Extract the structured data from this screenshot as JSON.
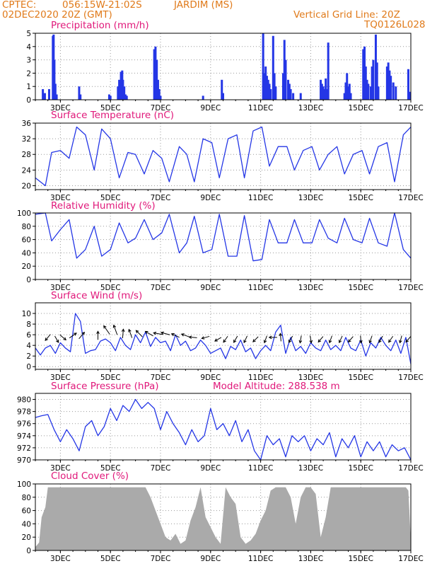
{
  "header": {
    "source": "CPTEC:",
    "coords": "056:15W-21:02S",
    "location": "JARDIM (MS)",
    "run": "02DEC2020 20Z (GMT)",
    "grid_note": "Vertical Grid Line: 20Z",
    "model_code": "TQ0126L028"
  },
  "x_axis": {
    "ticks": [
      {
        "day": 3,
        "label": "3DEC"
      },
      {
        "day": 5,
        "label": "5DEC"
      },
      {
        "day": 7,
        "label": "7DEC"
      },
      {
        "day": 9,
        "label": "9DEC"
      },
      {
        "day": 11,
        "label": "11DEC"
      },
      {
        "day": 13,
        "label": "13DEC"
      },
      {
        "day": 15,
        "label": "15DEC"
      },
      {
        "day": 17,
        "label": "17DEC"
      }
    ]
  },
  "model_altitude": "Model Altitude: 288.538 m",
  "colors": {
    "header": "#e07a1a",
    "panel_title": "#e0187a",
    "series": "#2436e6",
    "cloud": "#aaaaaa",
    "grid": "#999999"
  },
  "chart_data": [
    {
      "type": "bar",
      "title": "Precipitation (mm/h)",
      "ylim": [
        0,
        5
      ],
      "yticks": [
        0,
        1,
        2,
        3,
        4,
        5
      ],
      "x_unit": "day of December 2020",
      "x": [
        2.3,
        2.38,
        2.55,
        2.7,
        2.73,
        2.76,
        2.8,
        2.85,
        3.75,
        3.8,
        4.95,
        5.0,
        5.3,
        5.35,
        5.42,
        5.47,
        5.5,
        5.55,
        5.6,
        5.65,
        6.75,
        6.8,
        6.85,
        6.9,
        6.95,
        7.0,
        8.7,
        9.45,
        9.5,
        11.1,
        11.15,
        11.2,
        11.25,
        11.3,
        11.35,
        11.4,
        11.5,
        11.55,
        11.6,
        11.9,
        11.95,
        12.0,
        12.1,
        12.15,
        12.2,
        12.3,
        12.6,
        13.4,
        13.45,
        13.5,
        13.55,
        13.6,
        13.65,
        13.7,
        14.35,
        14.4,
        14.45,
        14.5,
        14.55,
        14.6,
        15.1,
        15.15,
        15.2,
        15.25,
        15.3,
        15.4,
        15.45,
        15.5,
        15.6,
        15.65,
        15.7,
        16.05,
        16.1,
        16.15,
        16.2,
        16.3,
        16.4,
        16.9,
        16.95
      ],
      "values": [
        0.8,
        0.5,
        0.8,
        4.8,
        4.9,
        3.0,
        1.2,
        0.4,
        1.0,
        0.4,
        0.4,
        0.3,
        1.0,
        1.5,
        2.1,
        2.2,
        1.5,
        1.0,
        0.4,
        0.3,
        3.8,
        4.0,
        3.0,
        1.5,
        0.8,
        0.3,
        0.3,
        1.5,
        0.5,
        5.0,
        2.0,
        2.5,
        1.8,
        1.5,
        1.2,
        0.8,
        4.8,
        2.0,
        1.0,
        2.0,
        4.5,
        3.0,
        1.5,
        1.2,
        0.8,
        0.5,
        0.5,
        1.5,
        1.2,
        1.0,
        0.8,
        1.6,
        0.8,
        4.3,
        0.5,
        1.3,
        2.0,
        1.0,
        1.2,
        0.5,
        3.8,
        4.0,
        2.5,
        1.5,
        1.2,
        1.0,
        2.5,
        3.0,
        4.9,
        2.8,
        1.0,
        2.5,
        2.8,
        2.2,
        1.8,
        1.3,
        1.0,
        2.3,
        0.6
      ]
    },
    {
      "type": "line",
      "title": "Surface Temperature (nC)",
      "ylim": [
        19,
        36
      ],
      "yticks": [
        20,
        24,
        28,
        32,
        36
      ],
      "x": [
        2.0,
        2.4,
        2.65,
        3.0,
        3.35,
        3.65,
        4.0,
        4.35,
        4.65,
        5.0,
        5.35,
        5.7,
        6.0,
        6.35,
        6.7,
        7.05,
        7.35,
        7.75,
        8.05,
        8.35,
        8.7,
        9.05,
        9.35,
        9.7,
        10.05,
        10.35,
        10.7,
        11.05,
        11.35,
        11.7,
        12.05,
        12.35,
        12.7,
        13.05,
        13.35,
        13.7,
        14.05,
        14.35,
        14.7,
        15.05,
        15.35,
        15.7,
        16.05,
        16.35,
        16.7,
        17.0
      ],
      "values": [
        22,
        20,
        28.5,
        29,
        27,
        35,
        33,
        24,
        34.5,
        32,
        22,
        28.5,
        28,
        23,
        29,
        27,
        21,
        30,
        28,
        21,
        32,
        31,
        22,
        32,
        33,
        22,
        34,
        35,
        25,
        30,
        30,
        24,
        29,
        30,
        24,
        28,
        30,
        23,
        28,
        29,
        23,
        30,
        31,
        21,
        33,
        35
      ]
    },
    {
      "type": "line",
      "title": "Relative Humidity (%)",
      "ylim": [
        0,
        100
      ],
      "yticks": [
        0,
        20,
        40,
        60,
        80,
        100
      ],
      "x": [
        2.0,
        2.4,
        2.65,
        3.0,
        3.35,
        3.65,
        4.0,
        4.35,
        4.65,
        5.0,
        5.35,
        5.7,
        6.0,
        6.35,
        6.7,
        7.05,
        7.35,
        7.75,
        8.05,
        8.35,
        8.7,
        9.05,
        9.35,
        9.7,
        10.05,
        10.35,
        10.7,
        11.05,
        11.35,
        11.7,
        12.05,
        12.35,
        12.7,
        13.05,
        13.35,
        13.7,
        14.05,
        14.35,
        14.7,
        15.05,
        15.35,
        15.7,
        16.05,
        16.35,
        16.7,
        17.0
      ],
      "values": [
        98,
        100,
        58,
        75,
        90,
        32,
        45,
        80,
        35,
        45,
        85,
        55,
        62,
        90,
        60,
        70,
        98,
        40,
        55,
        95,
        40,
        45,
        98,
        35,
        35,
        96,
        28,
        30,
        90,
        55,
        55,
        90,
        55,
        55,
        90,
        62,
        55,
        92,
        60,
        55,
        92,
        55,
        50,
        100,
        45,
        32
      ]
    },
    {
      "type": "line",
      "title": "Surface Wind (m/s)",
      "ylim": [
        -0.5,
        12
      ],
      "yticks": [
        0,
        2,
        4,
        6,
        8,
        10
      ],
      "x": [
        2.0,
        2.2,
        2.4,
        2.6,
        2.8,
        3.0,
        3.2,
        3.4,
        3.6,
        3.8,
        4.0,
        4.2,
        4.4,
        4.6,
        4.8,
        5.0,
        5.2,
        5.4,
        5.6,
        5.8,
        6.0,
        6.2,
        6.4,
        6.6,
        6.8,
        7.0,
        7.2,
        7.4,
        7.6,
        7.8,
        8.0,
        8.2,
        8.4,
        8.6,
        8.8,
        9.0,
        9.2,
        9.4,
        9.6,
        9.8,
        10.0,
        10.2,
        10.4,
        10.6,
        10.8,
        11.0,
        11.2,
        11.4,
        11.6,
        11.8,
        12.0,
        12.2,
        12.4,
        12.6,
        12.8,
        13.0,
        13.2,
        13.4,
        13.6,
        13.8,
        14.0,
        14.2,
        14.4,
        14.6,
        14.8,
        15.0,
        15.2,
        15.4,
        15.6,
        15.8,
        16.0,
        16.2,
        16.4,
        16.6,
        16.8,
        17.0
      ],
      "values": [
        3.5,
        2.2,
        3.5,
        4.0,
        2.5,
        4.5,
        3.5,
        2.8,
        10.0,
        8.5,
        2.5,
        3.0,
        3.2,
        4.8,
        5.2,
        4.5,
        3.0,
        5.5,
        4.0,
        3.2,
        6.0,
        4.5,
        6.5,
        3.8,
        5.5,
        4.5,
        4.8,
        3.0,
        6.0,
        4.0,
        4.8,
        3.0,
        3.5,
        5.0,
        4.0,
        2.5,
        3.0,
        3.5,
        1.5,
        3.8,
        3.2,
        5.0,
        2.8,
        3.5,
        1.5,
        3.0,
        4.0,
        3.0,
        6.5,
        7.8,
        2.5,
        5.5,
        3.0,
        3.8,
        2.5,
        4.5,
        3.5,
        3.0,
        5.0,
        3.2,
        4.0,
        3.0,
        5.5,
        3.5,
        3.0,
        5.0,
        2.0,
        4.5,
        3.5,
        5.5,
        4.0,
        3.0,
        5.0,
        2.5,
        5.5,
        0.5
      ]
    },
    {
      "type": "line",
      "title": "Surface Pressure (hPa)",
      "ylim": [
        970,
        981
      ],
      "yticks": [
        970,
        972,
        974,
        976,
        978,
        980
      ],
      "x": [
        2.0,
        2.25,
        2.5,
        2.75,
        3.0,
        3.25,
        3.5,
        3.75,
        4.0,
        4.25,
        4.5,
        4.75,
        5.0,
        5.25,
        5.5,
        5.75,
        6.0,
        6.25,
        6.5,
        6.75,
        7.0,
        7.25,
        7.5,
        7.75,
        8.0,
        8.25,
        8.5,
        8.75,
        9.0,
        9.25,
        9.5,
        9.75,
        10.0,
        10.25,
        10.5,
        10.75,
        11.0,
        11.25,
        11.5,
        11.75,
        12.0,
        12.25,
        12.5,
        12.75,
        13.0,
        13.25,
        13.5,
        13.75,
        14.0,
        14.25,
        14.5,
        14.75,
        15.0,
        15.25,
        15.5,
        15.75,
        16.0,
        16.25,
        16.5,
        16.75,
        17.0
      ],
      "values": [
        977,
        977.3,
        977.5,
        975,
        973,
        975,
        973.5,
        971.5,
        975.5,
        976.5,
        974,
        975.5,
        978.5,
        976.5,
        979,
        978,
        980,
        978.5,
        979.5,
        978.5,
        975,
        978,
        976,
        974.5,
        972.5,
        975,
        973,
        974,
        978.5,
        975,
        976,
        974,
        976.5,
        973,
        975,
        971.5,
        970,
        974,
        972.5,
        973.5,
        970.5,
        974,
        973,
        974,
        971.5,
        973.5,
        972.5,
        974.5,
        970.5,
        973.5,
        972,
        974,
        970.5,
        973,
        971.5,
        973,
        970.5,
        972.5,
        971.5,
        972,
        970
      ]
    },
    {
      "type": "area",
      "title": "Cloud Cover (%)",
      "ylim": [
        0,
        100
      ],
      "yticks": [
        0,
        20,
        40,
        60,
        80,
        100
      ],
      "x": [
        2.0,
        2.15,
        2.25,
        2.4,
        2.5,
        2.6,
        2.8,
        3.0,
        3.3,
        3.6,
        3.8,
        4.0,
        4.3,
        4.6,
        4.8,
        5.0,
        5.2,
        5.4,
        5.6,
        5.8,
        6.0,
        6.2,
        6.4,
        6.6,
        6.8,
        7.0,
        7.2,
        7.4,
        7.6,
        7.8,
        8.0,
        8.2,
        8.4,
        8.6,
        8.8,
        9.0,
        9.2,
        9.4,
        9.6,
        9.8,
        10.0,
        10.2,
        10.4,
        10.6,
        10.8,
        11.0,
        11.2,
        11.4,
        11.6,
        11.8,
        12.0,
        12.2,
        12.4,
        12.6,
        12.8,
        13.0,
        13.2,
        13.4,
        13.6,
        13.8,
        14.0,
        14.2,
        14.4,
        14.6,
        14.8,
        15.0,
        15.2,
        15.4,
        15.6,
        15.8,
        16.0,
        16.2,
        16.4,
        16.6,
        16.8,
        16.9,
        17.0
      ],
      "values": [
        5,
        12,
        50,
        65,
        95,
        95,
        95,
        95,
        95,
        95,
        95,
        95,
        95,
        95,
        95,
        95,
        95,
        95,
        95,
        95,
        95,
        95,
        95,
        80,
        60,
        40,
        20,
        15,
        25,
        10,
        15,
        45,
        65,
        95,
        50,
        35,
        20,
        10,
        95,
        80,
        70,
        20,
        10,
        15,
        25,
        45,
        60,
        90,
        95,
        95,
        95,
        80,
        40,
        80,
        95,
        95,
        85,
        20,
        50,
        95,
        95,
        95,
        95,
        95,
        95,
        95,
        95,
        95,
        95,
        95,
        95,
        95,
        95,
        95,
        95,
        90,
        15
      ]
    }
  ],
  "wind_arrows": {
    "x": [
      2.5,
      2.85,
      3.1,
      3.5,
      3.85,
      4.5,
      4.85,
      5.2,
      5.5,
      5.8,
      6.15,
      6.55,
      6.9,
      7.2,
      7.6,
      8.0,
      8.3,
      8.8,
      9.3,
      9.6,
      10.0,
      10.4,
      10.8,
      11.2,
      11.5,
      11.8,
      12.2,
      12.6,
      13.0,
      13.4,
      13.8,
      14.2,
      14.6,
      15.0,
      15.4,
      15.8,
      16.2,
      16.6,
      16.9
    ],
    "dir_deg": [
      230,
      300,
      320,
      35,
      50,
      90,
      125,
      110,
      85,
      110,
      135,
      150,
      170,
      165,
      155,
      160,
      175,
      195,
      210,
      235,
      240,
      245,
      225,
      250,
      180,
      95,
      240,
      260,
      280,
      230,
      250,
      245,
      230,
      275,
      250,
      240,
      235,
      255,
      230
    ],
    "speed": [
      4,
      3,
      4,
      5,
      5,
      5,
      8,
      8,
      6,
      6,
      6,
      6,
      6,
      6,
      5,
      5,
      4,
      4,
      3,
      3,
      3,
      3,
      3,
      3,
      4,
      4,
      3,
      3,
      3,
      3,
      3,
      3,
      3,
      3,
      3,
      3,
      3,
      3,
      3
    ]
  }
}
